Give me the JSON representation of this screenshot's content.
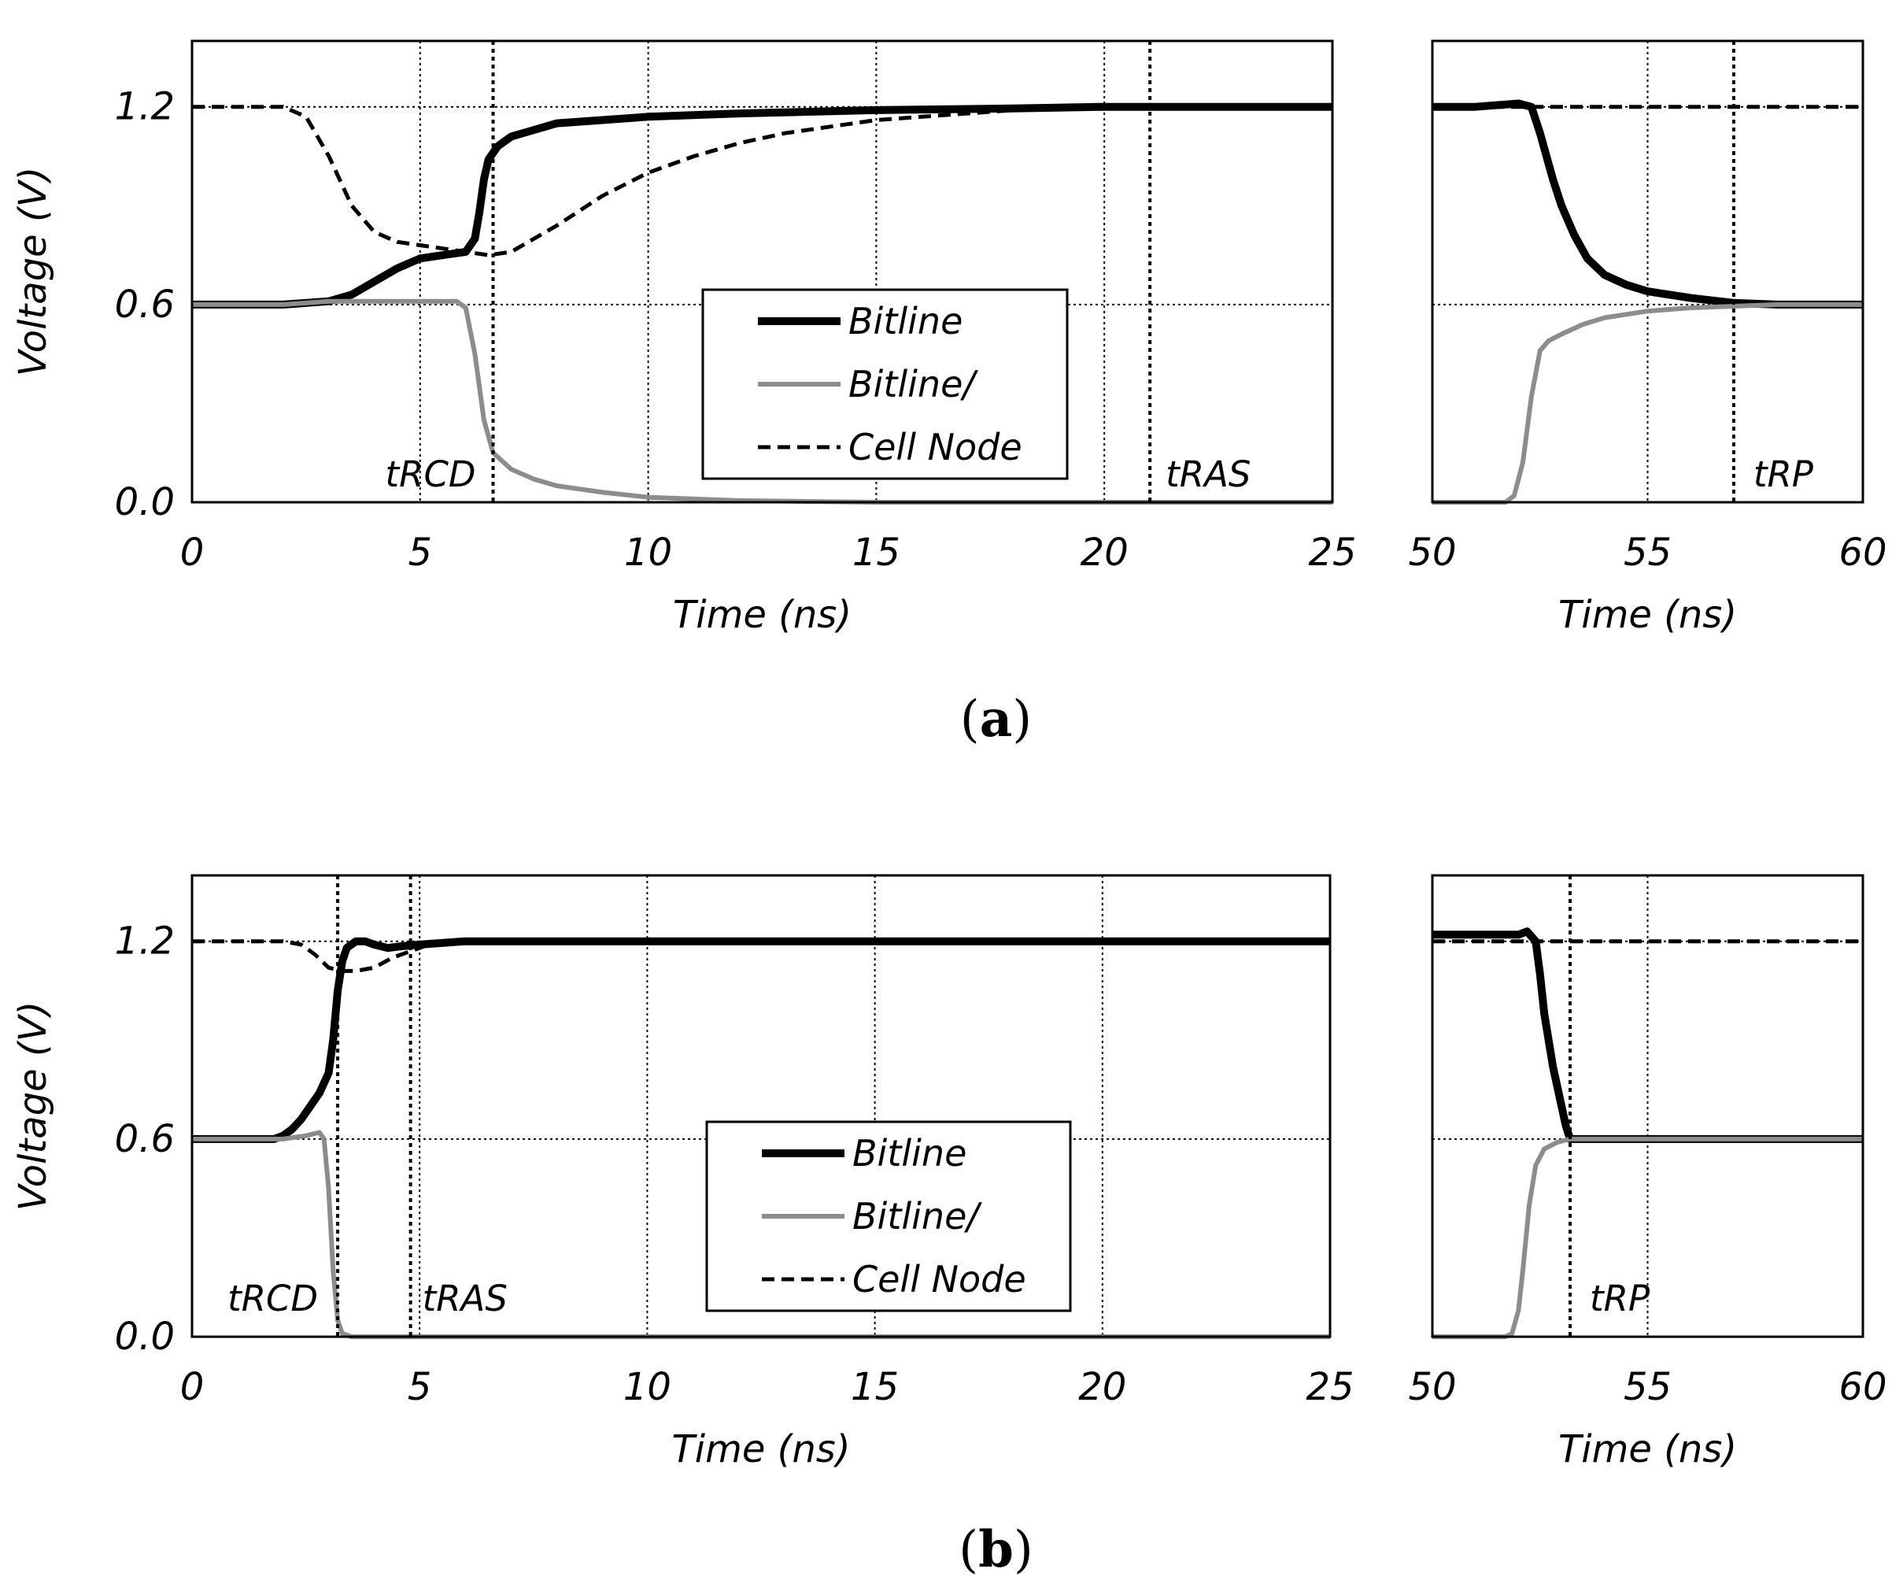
{
  "chart_data": [
    {
      "type": "line",
      "panel_label": "(a)",
      "panel_letter": "a",
      "ylabel": "Voltage (V)",
      "y_ticks": [
        "0.0",
        "0.6",
        "1.2"
      ],
      "ylim": [
        0,
        1.4
      ],
      "legend": [
        "Bitline",
        "Bitline/",
        "Cell Node"
      ],
      "subplots": [
        {
          "xlim": [
            0,
            25
          ],
          "x_ticks": [
            "0",
            "5",
            "10",
            "15",
            "20",
            "25"
          ],
          "x_grid": [
            5,
            10,
            15,
            20
          ],
          "xlabel": "Time (ns)",
          "markers": [
            {
              "label": "tRCD",
              "x": 6.6
            },
            {
              "label": "tRAS",
              "x": 21.0
            }
          ],
          "series": [
            {
              "name": "Bitline",
              "x": [
                0,
                2,
                3,
                3.5,
                4,
                4.5,
                5,
                5.5,
                6,
                6.2,
                6.3,
                6.4,
                6.5,
                6.7,
                7,
                7.5,
                8,
                9,
                10,
                12,
                15,
                18,
                20,
                22,
                25
              ],
              "y": [
                0.6,
                0.6,
                0.61,
                0.63,
                0.67,
                0.71,
                0.74,
                0.75,
                0.76,
                0.8,
                0.88,
                0.98,
                1.04,
                1.08,
                1.11,
                1.13,
                1.15,
                1.16,
                1.17,
                1.18,
                1.19,
                1.195,
                1.2,
                1.2,
                1.2
              ]
            },
            {
              "name": "Bitline/",
              "x": [
                0,
                2,
                3,
                4,
                5,
                5.8,
                6.0,
                6.2,
                6.4,
                6.6,
                7,
                7.5,
                8,
                9,
                10,
                11,
                12,
                15,
                20,
                25
              ],
              "y": [
                0.6,
                0.6,
                0.61,
                0.61,
                0.61,
                0.61,
                0.59,
                0.45,
                0.25,
                0.15,
                0.1,
                0.07,
                0.05,
                0.03,
                0.015,
                0.01,
                0.005,
                0.0,
                0.0,
                0.0
              ]
            },
            {
              "name": "Cell Node",
              "x": [
                0,
                2,
                2.5,
                3,
                3.5,
                4,
                4.5,
                5,
                5.5,
                6,
                6.5,
                7,
                8,
                9,
                10,
                11,
                12,
                13,
                14,
                15,
                16,
                18,
                20,
                22,
                25
              ],
              "y": [
                1.2,
                1.2,
                1.17,
                1.05,
                0.9,
                0.82,
                0.79,
                0.78,
                0.77,
                0.76,
                0.75,
                0.76,
                0.84,
                0.93,
                1.0,
                1.05,
                1.09,
                1.12,
                1.14,
                1.16,
                1.17,
                1.19,
                1.2,
                1.2,
                1.2
              ]
            }
          ]
        },
        {
          "xlim": [
            50,
            60
          ],
          "x_ticks": [
            "50",
            "55",
            "60"
          ],
          "x_grid": [
            55
          ],
          "xlabel": "Time (ns)",
          "markers": [
            {
              "label": "tRP",
              "x": 57.0
            }
          ],
          "series": [
            {
              "name": "Bitline",
              "x": [
                50,
                51,
                52,
                52.3,
                52.5,
                52.8,
                53,
                53.3,
                53.6,
                54,
                54.5,
                55,
                55.5,
                56,
                57,
                58,
                60
              ],
              "y": [
                1.2,
                1.2,
                1.21,
                1.2,
                1.12,
                0.98,
                0.9,
                0.81,
                0.74,
                0.69,
                0.66,
                0.64,
                0.63,
                0.62,
                0.605,
                0.6,
                0.6
              ]
            },
            {
              "name": "Bitline/",
              "x": [
                50,
                51,
                51.5,
                51.7,
                51.9,
                52.1,
                52.3,
                52.5,
                52.7,
                53,
                53.5,
                54,
                55,
                56,
                57,
                58,
                60
              ],
              "y": [
                0.0,
                0.0,
                0.0,
                0.0,
                0.02,
                0.12,
                0.32,
                0.46,
                0.49,
                0.51,
                0.54,
                0.56,
                0.58,
                0.59,
                0.595,
                0.6,
                0.6
              ]
            },
            {
              "name": "Cell Node",
              "x": [
                50,
                55,
                60
              ],
              "y": [
                1.2,
                1.2,
                1.2
              ]
            }
          ]
        }
      ]
    },
    {
      "type": "line",
      "panel_label": "(b)",
      "panel_letter": "b",
      "ylabel": "Voltage (V)",
      "y_ticks": [
        "0.0",
        "0.6",
        "1.2"
      ],
      "ylim": [
        0,
        1.4
      ],
      "legend": [
        "Bitline",
        "Bitline/",
        "Cell Node"
      ],
      "subplots": [
        {
          "xlim": [
            0,
            25
          ],
          "x_ticks": [
            "0",
            "5",
            "10",
            "15",
            "20",
            "25"
          ],
          "x_grid": [
            5,
            10,
            15,
            20
          ],
          "xlabel": "Time (ns)",
          "markers": [
            {
              "label": "tRCD",
              "x": 3.2
            },
            {
              "label": "tRAS",
              "x": 4.8
            }
          ],
          "series": [
            {
              "name": "Bitline",
              "x": [
                0,
                1.5,
                1.8,
                2.0,
                2.2,
                2.4,
                2.6,
                2.8,
                3.0,
                3.1,
                3.2,
                3.3,
                3.4,
                3.6,
                3.8,
                4.0,
                4.3,
                4.6,
                5,
                6,
                10,
                15,
                20,
                25
              ],
              "y": [
                0.6,
                0.6,
                0.6,
                0.61,
                0.63,
                0.66,
                0.7,
                0.74,
                0.8,
                0.9,
                1.05,
                1.14,
                1.18,
                1.2,
                1.2,
                1.19,
                1.18,
                1.185,
                1.19,
                1.2,
                1.2,
                1.2,
                1.2,
                1.2
              ]
            },
            {
              "name": "Bitline/",
              "x": [
                0,
                2.0,
                2.5,
                2.8,
                2.9,
                3.0,
                3.1,
                3.2,
                3.3,
                3.5,
                4,
                5,
                10,
                15,
                20,
                25
              ],
              "y": [
                0.6,
                0.6,
                0.61,
                0.62,
                0.6,
                0.45,
                0.2,
                0.05,
                0.01,
                0.0,
                0.0,
                0.0,
                0.0,
                0.0,
                0.0,
                0.0
              ]
            },
            {
              "name": "Cell Node",
              "x": [
                0,
                1.5,
                2.0,
                2.4,
                2.7,
                3.0,
                3.3,
                3.6,
                4.0,
                4.4,
                4.8,
                5.2,
                6,
                10,
                15,
                20,
                25
              ],
              "y": [
                1.2,
                1.2,
                1.2,
                1.19,
                1.16,
                1.12,
                1.11,
                1.11,
                1.12,
                1.15,
                1.17,
                1.19,
                1.2,
                1.2,
                1.2,
                1.2,
                1.2
              ]
            }
          ]
        },
        {
          "xlim": [
            50,
            60
          ],
          "x_ticks": [
            "50",
            "55",
            "60"
          ],
          "x_grid": [
            55
          ],
          "xlabel": "Time (ns)",
          "markers": [
            {
              "label": "tRP",
              "x": 53.2
            }
          ],
          "series": [
            {
              "name": "Bitline",
              "x": [
                50,
                51,
                52,
                52.2,
                52.4,
                52.5,
                52.6,
                52.8,
                53.0,
                53.1,
                53.2,
                54,
                56,
                58,
                60
              ],
              "y": [
                1.22,
                1.22,
                1.22,
                1.23,
                1.2,
                1.1,
                0.98,
                0.82,
                0.7,
                0.64,
                0.6,
                0.6,
                0.6,
                0.6,
                0.6
              ]
            },
            {
              "name": "Bitline/",
              "x": [
                50,
                51.5,
                51.7,
                51.85,
                52.0,
                52.1,
                52.25,
                52.4,
                52.6,
                52.9,
                53.2,
                54,
                56,
                58,
                60
              ],
              "y": [
                0.0,
                0.0,
                0.0,
                0.01,
                0.08,
                0.2,
                0.4,
                0.52,
                0.57,
                0.59,
                0.6,
                0.6,
                0.6,
                0.6,
                0.6
              ]
            },
            {
              "name": "Cell Node",
              "x": [
                50,
                55,
                60
              ],
              "y": [
                1.2,
                1.2,
                1.2
              ]
            }
          ]
        }
      ]
    }
  ]
}
